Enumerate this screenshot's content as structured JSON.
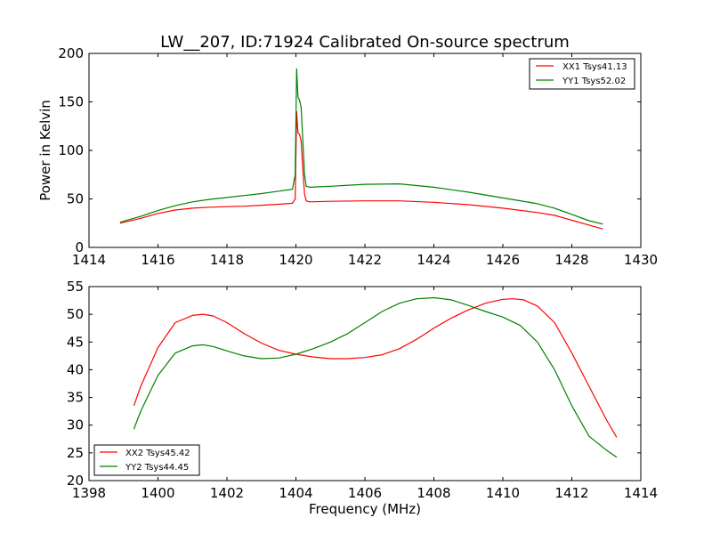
{
  "figure": {
    "title": "LW__207, ID:71924 Calibrated On-source spectrum"
  },
  "chart_data": [
    {
      "type": "line",
      "title": "LW__207, ID:71924 Calibrated On-source spectrum",
      "xlabel": "",
      "ylabel": "Power in Kelvin",
      "xlim": [
        1414,
        1430
      ],
      "ylim": [
        0,
        200
      ],
      "xticks": [
        "1414",
        "1416",
        "1418",
        "1420",
        "1422",
        "1424",
        "1426",
        "1428",
        "1430"
      ],
      "yticks": [
        "0",
        "50",
        "100",
        "150",
        "200"
      ],
      "grid": false,
      "legend_position": "top-right",
      "series": [
        {
          "name": "XX1 Tsys41.13",
          "color": "#ff0000",
          "x": [
            1414.9,
            1415.5,
            1416,
            1416.5,
            1417,
            1417.5,
            1418,
            1418.5,
            1419,
            1419.5,
            1419.9,
            1419.98,
            1420.02,
            1420.06,
            1420.1,
            1420.15,
            1420.2,
            1420.25,
            1420.3,
            1420.4,
            1421,
            1422,
            1423,
            1424,
            1425,
            1426,
            1427,
            1427.5,
            1428,
            1428.5,
            1428.9
          ],
          "y": [
            25,
            30,
            35,
            38.5,
            40.5,
            41.5,
            42,
            42.5,
            43.5,
            44.5,
            45.5,
            50,
            140,
            118,
            117,
            110,
            80,
            55,
            48,
            47,
            47.5,
            48,
            48,
            46.5,
            44,
            40.5,
            36,
            33,
            28,
            23,
            19
          ]
        },
        {
          "name": "YY1 Tsys52.02",
          "color": "#008000",
          "x": [
            1414.9,
            1415.5,
            1416,
            1416.5,
            1417,
            1417.5,
            1418,
            1418.5,
            1419,
            1419.5,
            1419.9,
            1419.98,
            1420.02,
            1420.06,
            1420.1,
            1420.15,
            1420.2,
            1420.25,
            1420.3,
            1420.4,
            1421,
            1422,
            1423,
            1424,
            1425,
            1426,
            1427,
            1427.5,
            1428,
            1428.5,
            1428.9
          ],
          "y": [
            26,
            32,
            38,
            43,
            47,
            49.5,
            51.5,
            53.5,
            55.5,
            58,
            60,
            75,
            184,
            155,
            152,
            145,
            110,
            75,
            63,
            62,
            63,
            65,
            65.5,
            62,
            57,
            51,
            45,
            40.5,
            34,
            27.5,
            24
          ]
        }
      ]
    },
    {
      "type": "line",
      "title": "",
      "xlabel": "Frequency (MHz)",
      "ylabel": "",
      "xlim": [
        1398,
        1414
      ],
      "ylim": [
        20,
        55
      ],
      "xticks": [
        "1398",
        "1400",
        "1402",
        "1404",
        "1406",
        "1408",
        "1410",
        "1412",
        "1414"
      ],
      "yticks": [
        "20",
        "25",
        "30",
        "35",
        "40",
        "45",
        "50",
        "55"
      ],
      "grid": false,
      "legend_position": "bottom-left",
      "series": [
        {
          "name": "XX2 Tsys45.42",
          "color": "#ff0000",
          "x": [
            1399.3,
            1399.5,
            1400,
            1400.5,
            1401,
            1401.3,
            1401.6,
            1402,
            1402.5,
            1403,
            1403.5,
            1404,
            1404.5,
            1405,
            1405.5,
            1406,
            1406.5,
            1407,
            1407.5,
            1408,
            1408.5,
            1409,
            1409.5,
            1410,
            1410.3,
            1410.6,
            1411,
            1411.5,
            1412,
            1412.5,
            1413,
            1413.3
          ],
          "y": [
            33.5,
            37,
            44,
            48.5,
            49.8,
            50,
            49.7,
            48.5,
            46.5,
            44.8,
            43.5,
            42.8,
            42.3,
            42,
            42,
            42.2,
            42.7,
            43.8,
            45.5,
            47.5,
            49.3,
            50.8,
            52,
            52.7,
            52.8,
            52.6,
            51.5,
            48.5,
            43,
            37,
            31,
            27.8
          ]
        },
        {
          "name": "YY2 Tsys44.45",
          "color": "#008000",
          "x": [
            1399.3,
            1399.5,
            1400,
            1400.5,
            1401,
            1401.3,
            1401.6,
            1402,
            1402.5,
            1403,
            1403.5,
            1404,
            1404.5,
            1405,
            1405.5,
            1406,
            1406.5,
            1407,
            1407.5,
            1408,
            1408.5,
            1409,
            1409.5,
            1410,
            1410.5,
            1411,
            1411.5,
            1412,
            1412.5,
            1413,
            1413.3
          ],
          "y": [
            29.3,
            32.5,
            39,
            43,
            44.3,
            44.5,
            44.2,
            43.4,
            42.5,
            42,
            42.1,
            42.8,
            43.8,
            45,
            46.5,
            48.5,
            50.5,
            52,
            52.8,
            53,
            52.6,
            51.6,
            50.5,
            49.5,
            48,
            45,
            40,
            33.5,
            28,
            25.5,
            24.2
          ]
        }
      ]
    }
  ]
}
